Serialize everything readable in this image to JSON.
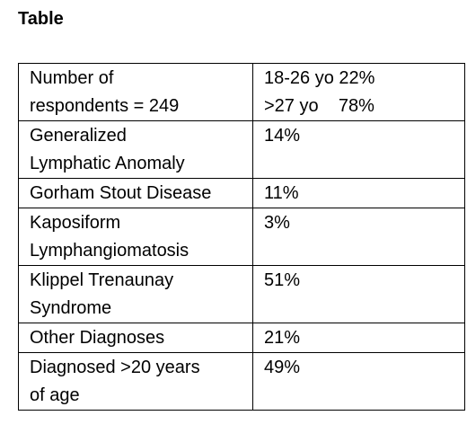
{
  "header": {
    "title": "Table"
  },
  "table": {
    "rows": [
      [
        [
          "Number of",
          "respondents = 249"
        ],
        [
          "18-26 yo 22%",
          ">27 yo    78%"
        ]
      ],
      [
        [
          "Generalized",
          "Lymphatic Anomaly"
        ],
        [
          "14%"
        ]
      ],
      [
        [
          "Gorham Stout Disease"
        ],
        [
          "11%"
        ]
      ],
      [
        [
          "Kaposiform",
          "Lymphangiomatosis"
        ],
        [
          "3%"
        ]
      ],
      [
        [
          "Klippel Trenaunay",
          "Syndrome"
        ],
        [
          "51%"
        ]
      ],
      [
        [
          "Other Diagnoses"
        ],
        [
          "21%"
        ]
      ],
      [
        [
          "Diagnosed >20 years",
          "of age"
        ],
        [
          "49%"
        ]
      ]
    ]
  }
}
